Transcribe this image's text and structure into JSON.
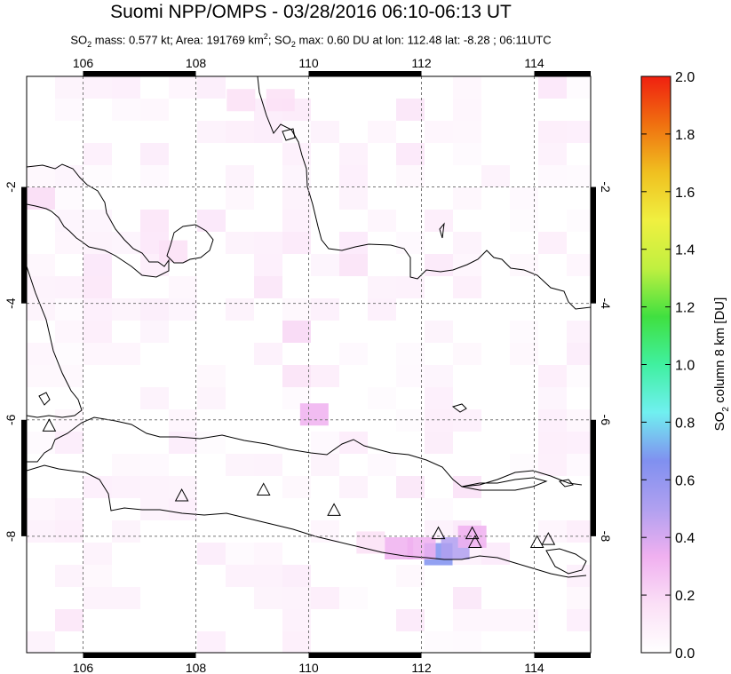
{
  "title": "Suomi NPP/OMPS - 03/28/2016 06:10-06:13 UT",
  "subtitle": {
    "so2_label": "SO",
    "so2_sub": "2",
    "mass_text": " mass: 0.577 kt; Area: 191769 km",
    "km_sup": "2",
    "sep": "; SO",
    "so2_sub2": "2",
    "rest": " max: 0.60 DU at lon: 112.48 lat: -8.28 ; 06:11UTC"
  },
  "map": {
    "lon_ticks": [
      "106",
      "108",
      "110",
      "112",
      "114"
    ],
    "lat_ticks": [
      "-2",
      "-4",
      "-6",
      "-8"
    ],
    "lon_values": [
      106,
      108,
      110,
      112,
      114
    ],
    "lat_values": [
      -2,
      -4,
      -6,
      -8
    ],
    "lon_range": [
      105,
      115
    ],
    "lat_range": [
      -10,
      -0.1
    ],
    "volcano_marker": "triangle-outline",
    "volcanoes": [
      {
        "lon": 105.4,
        "lat": -6.1
      },
      {
        "lon": 107.75,
        "lat": -7.3
      },
      {
        "lon": 109.2,
        "lat": -7.2
      },
      {
        "lon": 110.45,
        "lat": -7.55
      },
      {
        "lon": 112.3,
        "lat": -7.95
      },
      {
        "lon": 112.9,
        "lat": -7.95
      },
      {
        "lon": 112.95,
        "lat": -8.1
      },
      {
        "lon": 114.05,
        "lat": -8.1
      },
      {
        "lon": 114.25,
        "lat": -8.05
      }
    ],
    "so2_cells": [
      {
        "lon": 112.3,
        "lat": -8.3,
        "du": 0.6
      },
      {
        "lon": 112.6,
        "lat": -8.2,
        "du": 0.55
      },
      {
        "lon": 112.0,
        "lat": -8.2,
        "du": 0.35
      },
      {
        "lon": 111.6,
        "lat": -8.2,
        "du": 0.25
      },
      {
        "lon": 110.1,
        "lat": -5.9,
        "du": 0.25
      },
      {
        "lon": 109.5,
        "lat": -0.5,
        "du": 0.2
      },
      {
        "lon": 107.6,
        "lat": -3.1,
        "du": 0.15
      },
      {
        "lon": 112.9,
        "lat": -8.0,
        "du": 0.35
      },
      {
        "lon": 111.1,
        "lat": -8.1,
        "du": 0.18
      },
      {
        "lon": 108.8,
        "lat": -0.5,
        "du": 0.15
      }
    ]
  },
  "colorbar": {
    "ticks": [
      "0.0",
      "0.2",
      "0.4",
      "0.6",
      "0.8",
      "1.0",
      "1.2",
      "1.4",
      "1.6",
      "1.8",
      "2.0"
    ],
    "label": "SO2 column 8 km [DU]",
    "label_main": "SO",
    "label_sub": "2",
    "label_rest": " column 8 km [DU]",
    "colors": [
      "#ffffff",
      "#fbe0f6",
      "#f0b0f0",
      "#b0a0f0",
      "#8090f0",
      "#70f0f0",
      "#40f0a0",
      "#40e040",
      "#c0f040",
      "#f0f040",
      "#f0c020",
      "#f07010",
      "#f02010"
    ]
  }
}
